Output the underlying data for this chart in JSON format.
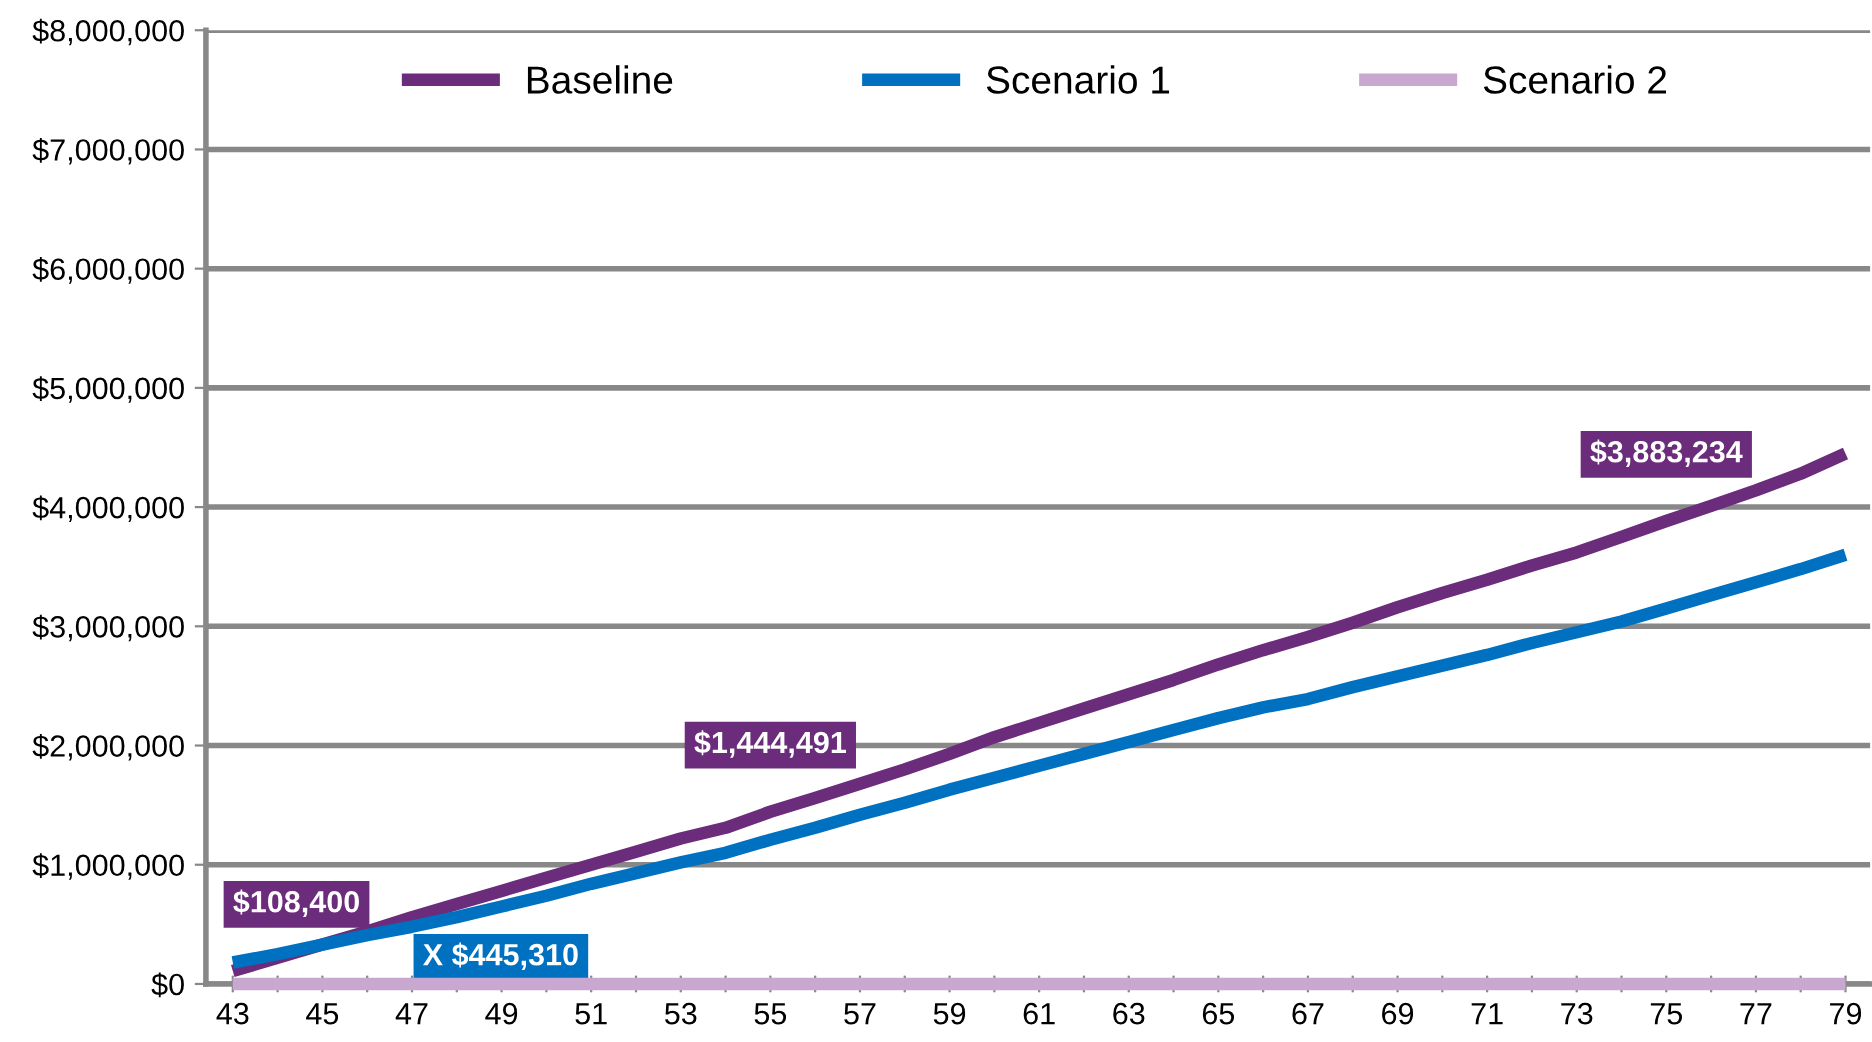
{
  "chart_data": {
    "type": "line",
    "categories": [
      "43",
      null,
      "45",
      null,
      "47",
      null,
      "49",
      null,
      "51",
      null,
      "53",
      null,
      "55",
      null,
      "57",
      null,
      "59",
      null,
      "61",
      null,
      "63",
      null,
      "65",
      null,
      "67",
      null,
      "69",
      null,
      "71",
      null,
      "73",
      null,
      "75",
      null,
      "77",
      null,
      "79"
    ],
    "series": [
      {
        "name": "Baseline",
        "color": "#6b2c7b",
        "values": [
          108400,
          220000,
          330000,
          440000,
          560000,
          670000,
          780000,
          890000,
          1000000,
          1110000,
          1220000,
          1310000,
          1444491,
          1560000,
          1680000,
          1800000,
          1930000,
          2070000,
          2190000,
          2310000,
          2430000,
          2550000,
          2680000,
          2800000,
          2910000,
          3030000,
          3160000,
          3280000,
          3390000,
          3510000,
          3620000,
          3750000,
          3883234,
          4010000,
          4140000,
          4280000,
          4450000
        ]
      },
      {
        "name": "Scenario 1",
        "color": "#0070c0",
        "values": [
          180000,
          250000,
          330000,
          410000,
          480000,
          560000,
          650000,
          740000,
          840000,
          930000,
          1020000,
          1100000,
          1210000,
          1310000,
          1420000,
          1520000,
          1630000,
          1730000,
          1830000,
          1930000,
          2030000,
          2130000,
          2230000,
          2320000,
          2390000,
          2490000,
          2580000,
          2670000,
          2760000,
          2860000,
          2950000,
          3040000,
          3150000,
          3260000,
          3370000,
          3480000,
          3600000
        ]
      },
      {
        "name": "Scenario 2",
        "color": "#c8a8d0",
        "values": [
          0,
          0,
          0,
          0,
          0,
          0,
          0,
          0,
          0,
          0,
          0,
          0,
          0,
          0,
          0,
          0,
          0,
          0,
          0,
          0,
          0,
          0,
          0,
          0,
          0,
          0,
          0,
          0,
          0,
          0,
          0,
          0,
          0,
          0,
          0,
          0,
          0
        ]
      }
    ],
    "annotations": [
      {
        "text": "$108,400",
        "x": "43",
        "y": 108400
      },
      {
        "text": "X $445,310",
        "x": "47",
        "y": 480000
      },
      {
        "text": "$1,444,491",
        "x": "55",
        "y": 1444491
      },
      {
        "text": "$3,883,234",
        "x": "75",
        "y": 3883234
      }
    ],
    "ylim": [
      0,
      8000000
    ],
    "yticks": [
      {
        "value": 0,
        "label": "$0"
      },
      {
        "value": 1000000,
        "label": "$1,000,000"
      },
      {
        "value": 2000000,
        "label": "$2,000,000"
      },
      {
        "value": 3000000,
        "label": "$3,000,000"
      },
      {
        "value": 4000000,
        "label": "$4,000,000"
      },
      {
        "value": 5000000,
        "label": "$5,000,000"
      },
      {
        "value": 6000000,
        "label": "$6,000,000"
      },
      {
        "value": 7000000,
        "label": "$7,000,000"
      },
      {
        "value": 8000000,
        "label": "$8,000,000"
      }
    ],
    "grid": "y",
    "legend": "top",
    "marker": "none",
    "line_style": "solid"
  }
}
